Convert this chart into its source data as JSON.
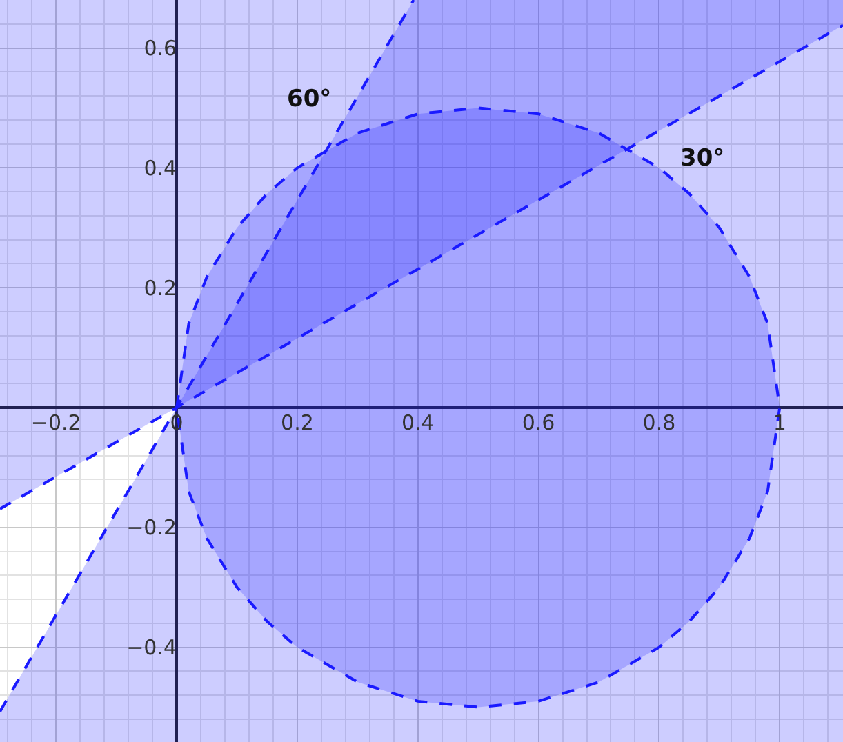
{
  "chart_data": {
    "type": "line",
    "xlim": [
      -0.293,
      1.105
    ],
    "ylim": [
      -0.558,
      0.68
    ],
    "xticks": [
      {
        "value": -0.2,
        "label": "−0.2"
      },
      0,
      0.2,
      0.4,
      0.6,
      0.8,
      1
    ],
    "yticks": [
      {
        "value": -0.4,
        "label": "−0.4"
      },
      {
        "value": -0.2,
        "label": "−0.2"
      },
      0.2,
      0.4,
      0.6
    ],
    "grid": true,
    "line_style": "dashed",
    "marker": "none",
    "series": [
      {
        "color": "#1a1aff",
        "x": [
          -0.293,
          1.105
        ],
        "values": [
          -0.169,
          0.638
        ],
        "lower": [
          -0.169,
          0.638
        ],
        "upper": [
          0.68,
          0.68
        ]
      },
      {
        "color": "#1a1aff",
        "x": [
          -0.293,
          0.393,
          1.105
        ],
        "values": [
          -0.507,
          0.68,
          null
        ],
        "lower": [
          -0.558,
          -0.558,
          -0.558
        ],
        "upper": [
          -0.507,
          0.68,
          0.68
        ]
      },
      {
        "type": "area",
        "color": "#1a1aff",
        "x": [
          0,
          0.02,
          0.05,
          0.1,
          0.15,
          0.2,
          0.3,
          0.4,
          0.5,
          0.6,
          0.7,
          0.8,
          0.85,
          0.9,
          0.95,
          0.98,
          1,
          0.98,
          0.95,
          0.9,
          0.85,
          0.8,
          0.7,
          0.6,
          0.5,
          0.4,
          0.3,
          0.2,
          0.15,
          0.1,
          0.05,
          0.02,
          0
        ],
        "values": [
          0,
          0.14,
          0.218,
          0.3,
          0.357,
          0.4,
          0.458,
          0.49,
          0.5,
          0.49,
          0.458,
          0.4,
          0.357,
          0.3,
          0.218,
          0.14,
          0,
          -0.14,
          -0.218,
          -0.3,
          -0.357,
          -0.4,
          -0.458,
          -0.49,
          -0.5,
          -0.49,
          -0.458,
          -0.4,
          -0.357,
          -0.3,
          -0.218,
          -0.14,
          0
        ]
      }
    ],
    "annotations": [
      "60°",
      "30°"
    ]
  }
}
